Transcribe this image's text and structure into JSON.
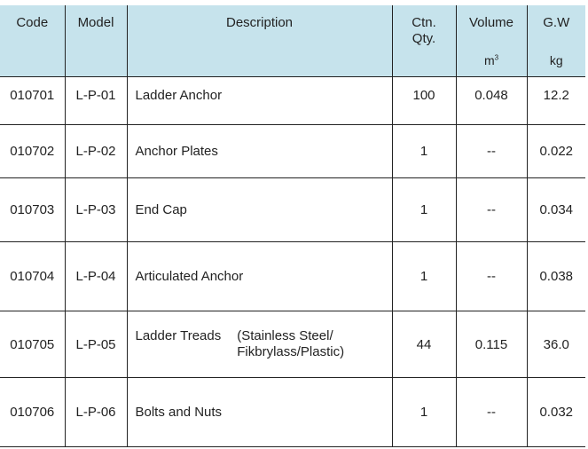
{
  "headers": {
    "code": "Code",
    "model": "Model",
    "description": "Description",
    "qty_line1": "Ctn.",
    "qty_line2": "Qty.",
    "volume": "Volume",
    "volume_unit": "m",
    "volume_unit_exp": "3",
    "gw": "G.W",
    "gw_unit": "kg"
  },
  "rows": [
    {
      "code": "010701",
      "model": "L-P-01",
      "description": "Ladder Anchor",
      "note1": "",
      "note2": "",
      "qty": "100",
      "volume": "0.048",
      "gw": "12.2"
    },
    {
      "code": "010702",
      "model": "L-P-02",
      "description": "Anchor Plates",
      "note1": "",
      "note2": "",
      "qty": "1",
      "volume": "--",
      "gw": "0.022"
    },
    {
      "code": "010703",
      "model": "L-P-03",
      "description": "End Cap",
      "note1": "",
      "note2": "",
      "qty": "1",
      "volume": "--",
      "gw": "0.034"
    },
    {
      "code": "010704",
      "model": "L-P-04",
      "description": "Articulated Anchor",
      "note1": "",
      "note2": "",
      "qty": "1",
      "volume": "--",
      "gw": "0.038"
    },
    {
      "code": "010705",
      "model": "L-P-05",
      "description": "Ladder Treads",
      "note1": "(Stainless Steel/",
      "note2": "Fikbrylass/Plastic)",
      "qty": "44",
      "volume": "0.115",
      "gw": "36.0"
    },
    {
      "code": "010706",
      "model": "L-P-06",
      "description": "Bolts and Nuts",
      "note1": "",
      "note2": "",
      "qty": "1",
      "volume": "--",
      "gw": "0.032"
    }
  ]
}
